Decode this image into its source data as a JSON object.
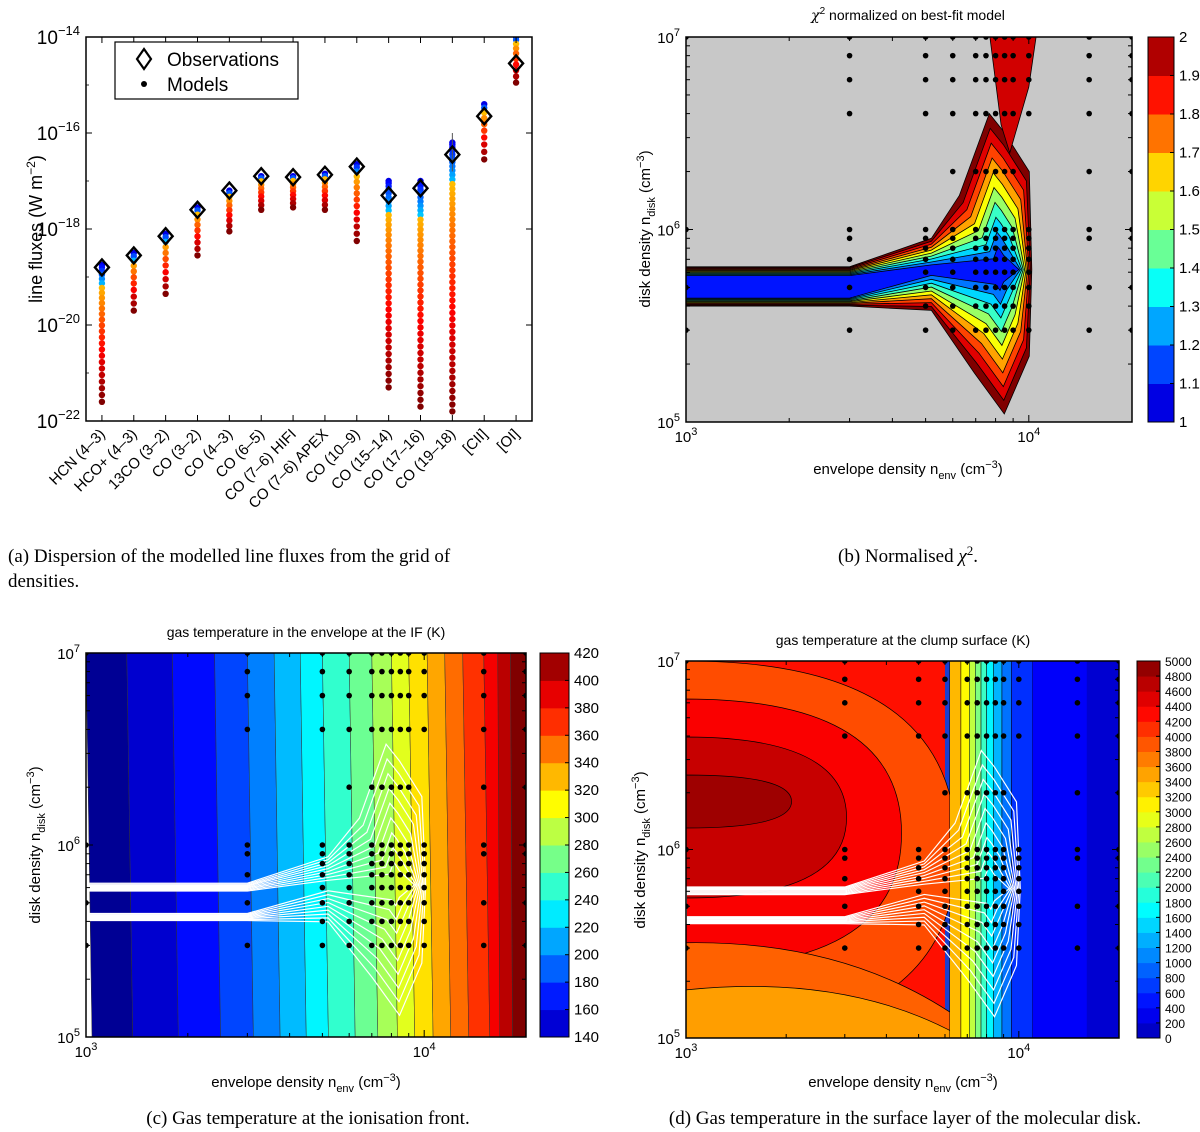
{
  "chart_data": [
    {
      "type": "scatter",
      "title": "",
      "xlabel": "",
      "ylabel": "line fluxes (W m⁻²)",
      "ylabel_parts": {
        "main": "line fluxes (W m",
        "sup": "−2",
        "close": ")"
      },
      "yscale": "log",
      "ylim": [
        1e-22,
        1e-14
      ],
      "yticks": [
        {
          "exp": -22,
          "label": "10",
          "sup": "−22"
        },
        {
          "exp": -20,
          "label": "10",
          "sup": "−20"
        },
        {
          "exp": -18,
          "label": "10",
          "sup": "−18"
        },
        {
          "exp": -16,
          "label": "10",
          "sup": "−16"
        },
        {
          "exp": -14,
          "label": "10",
          "sup": "−14"
        }
      ],
      "categories": [
        "HCN (4–3)",
        "HCO+ (4–3)",
        "13CO (3–2)",
        "CO (3–2)",
        "CO (4–3)",
        "CO (6–5)",
        "CO (7–6) HIFI",
        "CO (7–6) APEX",
        "CO (10–9)",
        "CO (15–14)",
        "CO (17–16)",
        "CO (19–18)",
        "[CII]",
        "[OI]"
      ],
      "observations_log10": [
        -18.8,
        -18.55,
        -18.15,
        -17.6,
        -17.2,
        -16.9,
        -16.92,
        -16.87,
        -16.7,
        -17.3,
        -17.15,
        -16.45,
        -15.65,
        -14.55
      ],
      "models_range_log10": [
        [
          -21.6,
          -18.75
        ],
        [
          -19.7,
          -18.5
        ],
        [
          -19.35,
          -18.1
        ],
        [
          -18.55,
          -17.55
        ],
        [
          -18.05,
          -17.2
        ],
        [
          -17.6,
          -16.9
        ],
        [
          -17.55,
          -16.9
        ],
        [
          -17.6,
          -16.85
        ],
        [
          -18.25,
          -16.65
        ],
        [
          -21.3,
          -17.0
        ],
        [
          -21.7,
          -17.0
        ],
        [
          -21.8,
          -16.2
        ],
        [
          -16.55,
          -15.4
        ],
        [
          -14.95,
          -14.0
        ]
      ],
      "legend": [
        {
          "marker": "diamond",
          "label": "Observations"
        },
        {
          "marker": "dot",
          "label": "Models"
        }
      ],
      "legend_position": "top-left"
    },
    {
      "type": "contour",
      "title": "χ² normalized on best-fit model",
      "title_parts": {
        "sym": "χ",
        "sup": "2",
        "rest": " normalized on best-fit model"
      },
      "xlabel_parts": {
        "main": "envelope density n",
        "sub": "env",
        "unit": " (cm",
        "sup": "−3",
        "close": ")"
      },
      "ylabel_parts": {
        "main": "disk density n",
        "sub": "disk",
        "unit": " (cm",
        "sup": "−3",
        "close": ")"
      },
      "xscale": "log",
      "yscale": "log",
      "xlim": [
        1000,
        20000
      ],
      "ylim": [
        100000,
        10000000
      ],
      "xticks": [
        {
          "label": "10",
          "sup": "3"
        },
        {
          "label": "10",
          "sup": "4"
        }
      ],
      "yticks": [
        {
          "label": "10",
          "sup": "5"
        },
        {
          "label": "10",
          "sup": "6"
        },
        {
          "label": "10",
          "sup": "7"
        }
      ],
      "colorbar": {
        "min": 1,
        "max": 2,
        "ticks": [
          "1",
          "1.1",
          "1.2",
          "1.3",
          "1.4",
          "1.5",
          "1.6",
          "1.7",
          "1.8",
          "1.9",
          "2"
        ]
      },
      "minimum_at": [
        8000,
        600000
      ],
      "background_color": "#c8c8c8"
    },
    {
      "type": "contour",
      "title": "gas temperature in the envelope at the IF (K)",
      "xlabel_parts": {
        "main": "envelope density n",
        "sub": "env",
        "unit": " (cm",
        "sup": "−3",
        "close": ")"
      },
      "ylabel_parts": {
        "main": "disk density n",
        "sub": "disk",
        "unit": " (cm",
        "sup": "−3",
        "close": ")"
      },
      "xscale": "log",
      "yscale": "log",
      "xlim": [
        1000,
        20000
      ],
      "ylim": [
        100000,
        10000000
      ],
      "xticks": [
        {
          "label": "10",
          "sup": "3"
        },
        {
          "label": "10",
          "sup": "4"
        }
      ],
      "yticks": [
        {
          "label": "10",
          "sup": "5"
        },
        {
          "label": "10",
          "sup": "6"
        },
        {
          "label": "10",
          "sup": "7"
        }
      ],
      "colorbar": {
        "min": 140,
        "max": 420,
        "ticks": [
          "140",
          "160",
          "180",
          "200",
          "220",
          "240",
          "260",
          "280",
          "300",
          "320",
          "340",
          "360",
          "380",
          "400",
          "420"
        ]
      }
    },
    {
      "type": "contour",
      "title": "gas temperature at the clump surface (K)",
      "xlabel_parts": {
        "main": "envelope density n",
        "sub": "env",
        "unit": " (cm",
        "sup": "−3",
        "close": ")"
      },
      "ylabel_parts": {
        "main": "disk density n",
        "sub": "disk",
        "unit": " (cm",
        "sup": "−3",
        "close": ")"
      },
      "xscale": "log",
      "yscale": "log",
      "xlim": [
        1000,
        20000
      ],
      "ylim": [
        100000,
        10000000
      ],
      "xticks": [
        {
          "label": "10",
          "sup": "3"
        },
        {
          "label": "10",
          "sup": "4"
        }
      ],
      "yticks": [
        {
          "label": "10",
          "sup": "5"
        },
        {
          "label": "10",
          "sup": "6"
        },
        {
          "label": "10",
          "sup": "7"
        }
      ],
      "colorbar": {
        "min": 0,
        "max": 5000,
        "ticks": [
          "0",
          "200",
          "400",
          "600",
          "800",
          "1000",
          "1200",
          "1400",
          "1600",
          "1800",
          "2000",
          "2200",
          "2400",
          "2600",
          "2800",
          "3000",
          "3200",
          "3400",
          "3600",
          "3800",
          "4000",
          "4200",
          "4400",
          "4600",
          "4800",
          "5000"
        ]
      }
    }
  ],
  "grid_models": {
    "n_env": [
      1000,
      3000,
      5000,
      6000,
      7000,
      7500,
      8000,
      8500,
      9000,
      10000,
      15000,
      20000
    ],
    "n_disk": [
      300000,
      400000,
      500000,
      600000,
      700000,
      800000,
      900000,
      1000000,
      2000000,
      4000000,
      6000000,
      8000000,
      10000000
    ]
  },
  "captions": {
    "a": "(a) Dispersion of the modelled line fluxes from the grid of densities.",
    "a_line1": "(a) Dispersion of the modelled line fluxes from the grid of",
    "a_line2": "densities.",
    "b_pre": "(b) Normalised ",
    "b_sym": "χ",
    "b_sup": "2",
    "b_post": ".",
    "c": "(c) Gas temperature at the ionisation front.",
    "d": "(d) Gas temperature in the surface layer of the molecular disk."
  }
}
